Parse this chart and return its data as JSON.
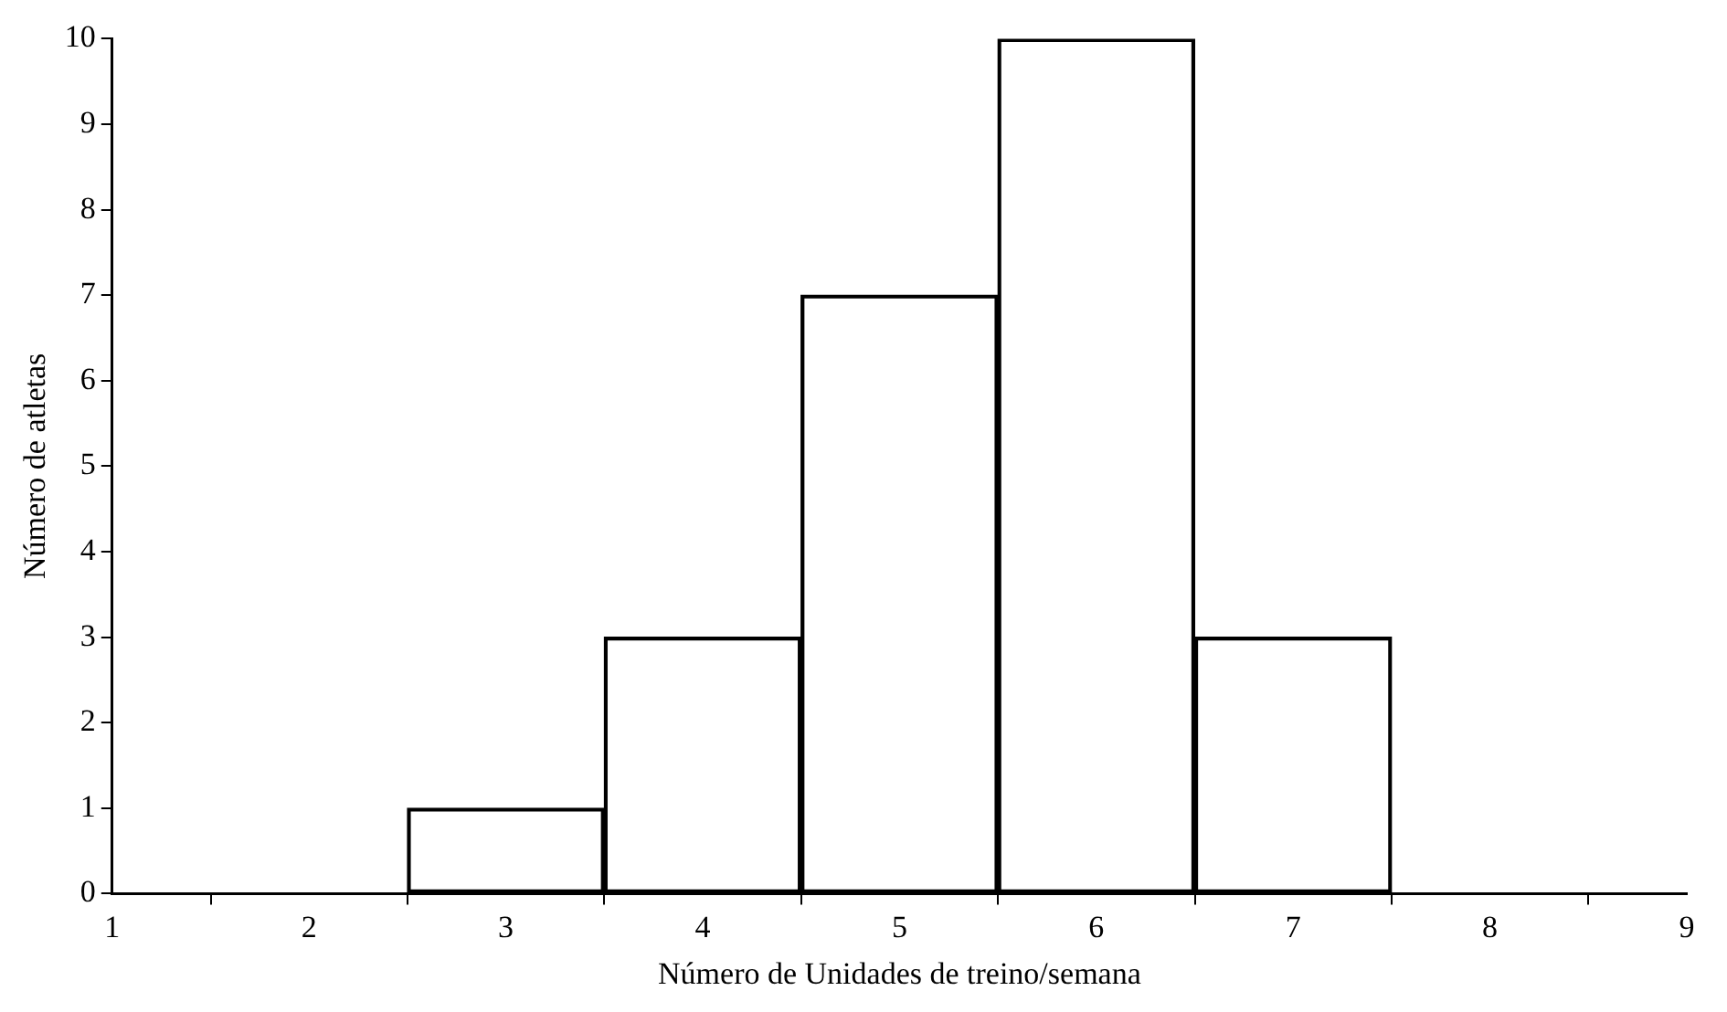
{
  "chart_data": {
    "type": "histogram",
    "xlabel": "Número de Unidades de treino/semana",
    "ylabel": "Número de atletas",
    "bins": [
      2.5,
      3.5,
      4.5,
      5.5,
      6.5,
      7.5
    ],
    "values": [
      1,
      3,
      7,
      10,
      3
    ],
    "color": "#000000",
    "xlim": [
      1,
      9
    ],
    "xticks": [
      1,
      2,
      3,
      4,
      5,
      6,
      7,
      8,
      9
    ],
    "ylim": [
      0,
      10
    ],
    "yticks": [
      0,
      1,
      2,
      3,
      4,
      5,
      6,
      7,
      8,
      9,
      10
    ],
    "grid": false,
    "legend": false
  }
}
